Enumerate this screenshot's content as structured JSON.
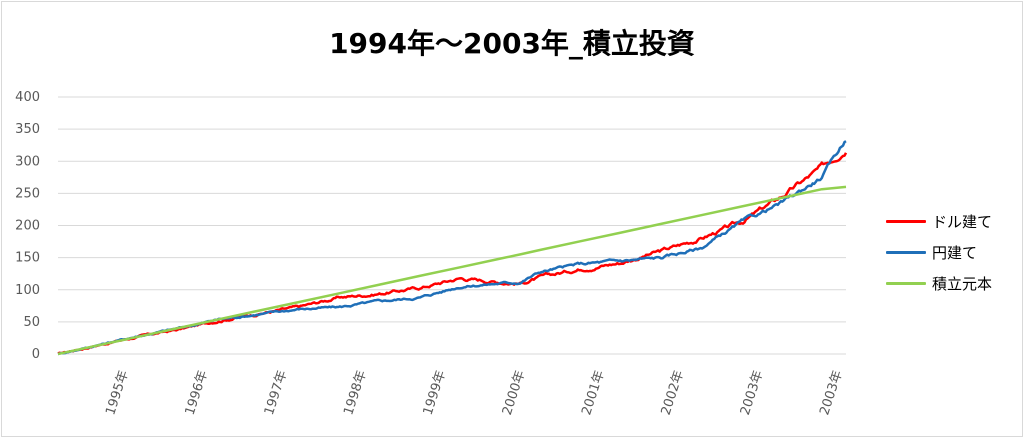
{
  "chart_data": {
    "type": "line",
    "title": "1994年～2003年_積立投資",
    "xlabel": "",
    "ylabel": "",
    "ylim": [
      0,
      400
    ],
    "yticks": [
      "0",
      "50",
      "100",
      "150",
      "200",
      "250",
      "300",
      "350",
      "400"
    ],
    "x_tick_labels": [
      "1995年",
      "1996年",
      "1997年",
      "1998年",
      "1999年",
      "2000年",
      "2001年",
      "2002年",
      "2003年",
      "2003年"
    ],
    "grid": true,
    "legend_position": "right",
    "x": [
      1994.0,
      1994.5,
      1995.0,
      1995.5,
      1996.0,
      1996.5,
      1997.0,
      1997.5,
      1998.0,
      1998.5,
      1999.0,
      1999.5,
      1999.75,
      2000.0,
      2000.5,
      2001.0,
      2001.5,
      2002.0,
      2002.5,
      2003.0,
      2003.5,
      2003.8
    ],
    "series": [
      {
        "name": "ドル建て",
        "color": "#ff0000",
        "values": [
          0,
          14,
          27,
          38,
          52,
          63,
          73,
          88,
          94,
          103,
          118,
          112,
          110,
          119,
          133,
          142,
          160,
          180,
          205,
          245,
          290,
          320
        ]
      },
      {
        "name": "円建て",
        "color": "#1f6fb8",
        "values": [
          0,
          14,
          28,
          40,
          54,
          62,
          70,
          73,
          82,
          88,
          105,
          110,
          112,
          128,
          140,
          145,
          150,
          165,
          205,
          235,
          275,
          335
        ]
      },
      {
        "name": "積立元本",
        "color": "#92d050",
        "values": [
          0,
          13.5,
          27,
          40.5,
          54,
          67.5,
          81,
          94.5,
          108,
          121.5,
          135,
          148.5,
          155,
          162,
          175.5,
          189,
          202.5,
          216,
          229.5,
          243,
          256.5,
          260
        ]
      }
    ]
  },
  "legend": {
    "items": [
      {
        "label": "ドル建て",
        "color": "#ff0000"
      },
      {
        "label": "円建て",
        "color": "#1f6fb8"
      },
      {
        "label": "積立元本",
        "color": "#92d050"
      }
    ]
  }
}
